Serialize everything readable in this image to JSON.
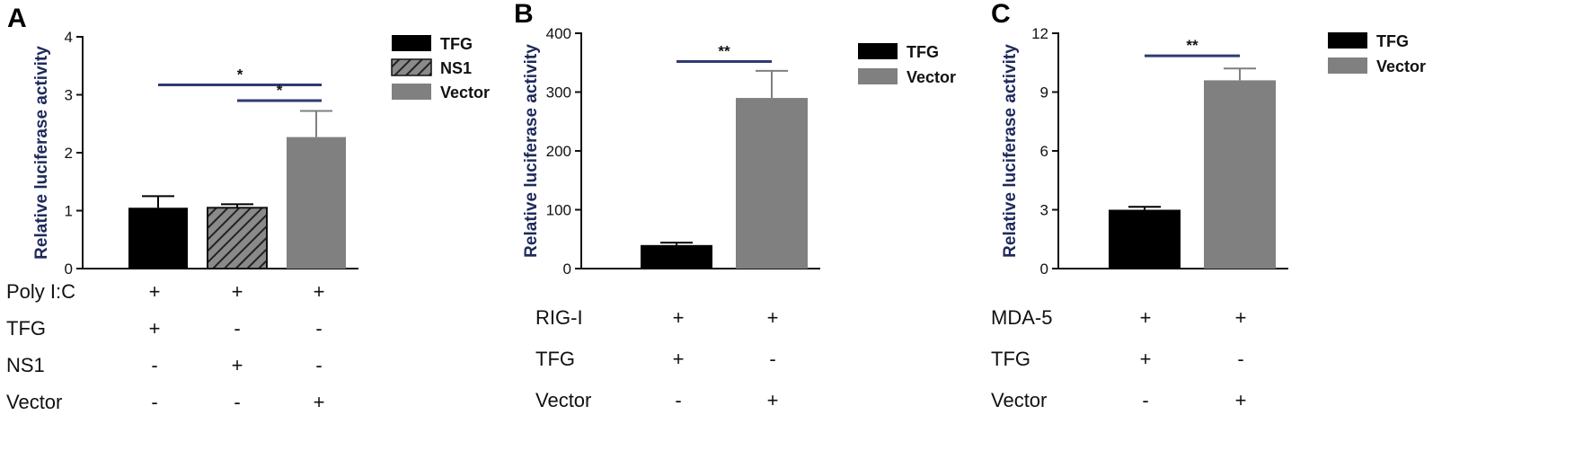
{
  "colors": {
    "tfg": "#000000",
    "ns1_fill": "#8a8a8a",
    "ns1_hatch": "#222222",
    "vector": "#808080",
    "sig_line": "#2f3a73",
    "ylabel": "#1f2a5a"
  },
  "chart_data": [
    {
      "type": "bar",
      "panel_label": "A",
      "title": "",
      "xlabel": "",
      "ylabel": "Relative luciferase activity",
      "ylim": [
        0,
        4
      ],
      "yticks": [
        "0",
        "1",
        "2",
        "3",
        "4"
      ],
      "categories": [
        "TFG",
        "NS1",
        "Vector"
      ],
      "values": [
        1.05,
        1.05,
        2.27
      ],
      "errors": [
        0.2,
        0.06,
        0.45
      ],
      "legend": [
        "TFG",
        "NS1",
        "Vector"
      ],
      "legend_position": "top-right",
      "significance": [
        {
          "from": 0,
          "to": 2,
          "label": "*",
          "level": 3.17
        },
        {
          "from": 1,
          "to": 2,
          "label": "*",
          "level": 2.9
        }
      ],
      "treatment_table": [
        {
          "label": "Poly I:C",
          "marks": [
            "+",
            "+",
            "+"
          ]
        },
        {
          "label": "TFG",
          "marks": [
            "+",
            "-",
            "-"
          ]
        },
        {
          "label": "NS1",
          "marks": [
            "-",
            "+",
            "-"
          ]
        },
        {
          "label": "Vector",
          "marks": [
            "-",
            "-",
            "+"
          ]
        }
      ]
    },
    {
      "type": "bar",
      "panel_label": "B",
      "title": "",
      "xlabel": "",
      "ylabel": "Relative luciferase activity",
      "ylim": [
        0,
        400
      ],
      "yticks": [
        "0",
        "100",
        "200",
        "300",
        "400"
      ],
      "categories": [
        "TFG",
        "Vector"
      ],
      "values": [
        40,
        290
      ],
      "errors": [
        4,
        46
      ],
      "legend": [
        "TFG",
        "Vector"
      ],
      "legend_position": "top-right",
      "significance": [
        {
          "from": 0,
          "to": 1,
          "label": "**",
          "level": 352
        }
      ],
      "treatment_table": [
        {
          "label": "RIG-I",
          "marks": [
            "+",
            "+"
          ]
        },
        {
          "label": "TFG",
          "marks": [
            "+",
            "-"
          ]
        },
        {
          "label": "Vector",
          "marks": [
            "-",
            "+"
          ]
        }
      ]
    },
    {
      "type": "bar",
      "panel_label": "C",
      "title": "",
      "xlabel": "",
      "ylabel": "Relative luciferase activity",
      "ylim": [
        0,
        12
      ],
      "yticks": [
        "0",
        "3",
        "6",
        "9",
        "12"
      ],
      "categories": [
        "TFG",
        "Vector"
      ],
      "values": [
        3.0,
        9.6
      ],
      "errors": [
        0.15,
        0.6
      ],
      "legend": [
        "TFG",
        "Vector"
      ],
      "legend_position": "top-right",
      "significance": [
        {
          "from": 0,
          "to": 1,
          "label": "**",
          "level": 10.85
        }
      ],
      "treatment_table": [
        {
          "label": "MDA-5",
          "marks": [
            "+",
            "+"
          ]
        },
        {
          "label": "TFG",
          "marks": [
            "+",
            "-"
          ]
        },
        {
          "label": "Vector",
          "marks": [
            "-",
            "+"
          ]
        }
      ]
    }
  ]
}
